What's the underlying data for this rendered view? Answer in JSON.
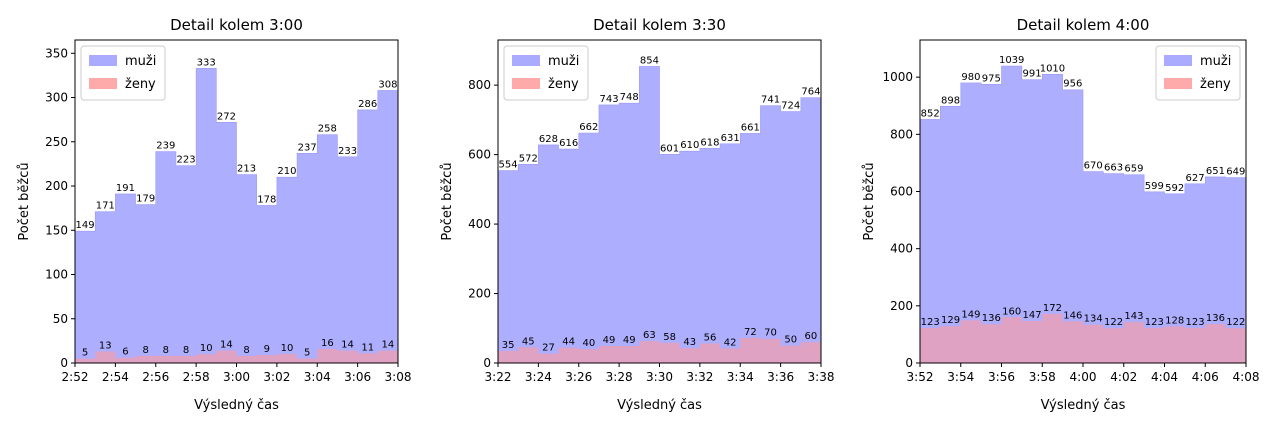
{
  "colors": {
    "men": "#b3b3ff",
    "men_edge": "#9a9af5",
    "women": "#f2a6a6",
    "overlap": "#cc79b3"
  },
  "chart_data": [
    {
      "type": "area",
      "step": true,
      "title": "Detail kolem 3:00",
      "xlabel": "Výsledný čas",
      "ylabel": "Počet běžců",
      "ylim": [
        0,
        365
      ],
      "yticks": [
        0,
        50,
        100,
        150,
        200,
        250,
        300,
        350
      ],
      "xtick_labels": [
        "2:52",
        "2:54",
        "2:56",
        "2:58",
        "3:00",
        "3:02",
        "3:04",
        "3:06",
        "3:08"
      ],
      "legend_position": "top-left",
      "series": [
        {
          "name": "muži",
          "values": [
            149,
            171,
            191,
            179,
            239,
            223,
            333,
            272,
            213,
            178,
            210,
            237,
            258,
            233,
            286,
            308
          ]
        },
        {
          "name": "ženy",
          "values": [
            5,
            13,
            6,
            8,
            8,
            8,
            10,
            14,
            8,
            9,
            10,
            5,
            16,
            14,
            11,
            14
          ]
        }
      ]
    },
    {
      "type": "area",
      "step": true,
      "title": "Detail kolem 3:30",
      "xlabel": "Výsledný čas",
      "ylabel": "Počet běžců",
      "ylim": [
        0,
        930
      ],
      "yticks": [
        0,
        200,
        400,
        600,
        800
      ],
      "xtick_labels": [
        "3:22",
        "3:24",
        "3:26",
        "3:28",
        "3:30",
        "3:32",
        "3:34",
        "3:36",
        "3:38"
      ],
      "legend_position": "top-left",
      "series": [
        {
          "name": "muži",
          "values": [
            554,
            572,
            628,
            616,
            662,
            743,
            748,
            854,
            601,
            610,
            618,
            631,
            661,
            741,
            724,
            764
          ]
        },
        {
          "name": "ženy",
          "values": [
            35,
            45,
            27,
            44,
            40,
            49,
            49,
            63,
            58,
            43,
            56,
            42,
            72,
            70,
            50,
            60
          ]
        }
      ]
    },
    {
      "type": "area",
      "step": true,
      "title": "Detail kolem 4:00",
      "xlabel": "Výsledný čas",
      "ylabel": "Počet běžců",
      "ylim": [
        0,
        1130
      ],
      "yticks": [
        0,
        200,
        400,
        600,
        800,
        1000
      ],
      "xtick_labels": [
        "3:52",
        "3:54",
        "3:56",
        "3:58",
        "4:00",
        "4:02",
        "4:04",
        "4:06",
        "4:08"
      ],
      "legend_position": "top-right",
      "series": [
        {
          "name": "muži",
          "values": [
            852,
            898,
            980,
            975,
            1039,
            991,
            1010,
            956,
            670,
            663,
            659,
            599,
            592,
            627,
            651,
            649
          ]
        },
        {
          "name": "ženy",
          "values": [
            123,
            129,
            149,
            136,
            160,
            147,
            172,
            146,
            134,
            122,
            143,
            123,
            128,
            123,
            136,
            122
          ]
        }
      ]
    }
  ]
}
